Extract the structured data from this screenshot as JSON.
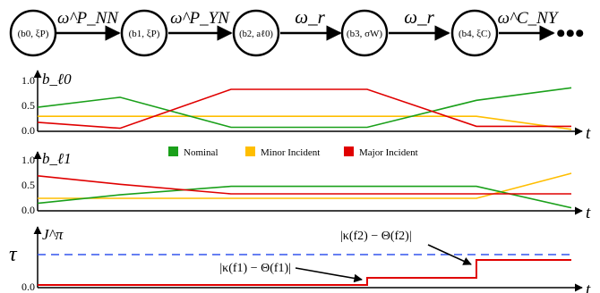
{
  "chain": {
    "states": [
      {
        "label": "(b0, ξP)"
      },
      {
        "label": "(b1, ξP)"
      },
      {
        "label": "(b2, aℓ0)"
      },
      {
        "label": "(b3, σW)"
      },
      {
        "label": "(b4, ξC)"
      }
    ],
    "transitions": [
      {
        "label": "ω^P_NN"
      },
      {
        "label": "ω^P_YN"
      },
      {
        "label": "ω_r"
      },
      {
        "label": "ω_r"
      },
      {
        "label": "ω^C_NY"
      }
    ],
    "continuation": "•••"
  },
  "legend": [
    {
      "label": "Nominal",
      "color": "#1aa01a"
    },
    {
      "label": "Minor Incident",
      "color": "#ffbe00"
    },
    {
      "label": "Major Incident",
      "color": "#e00000"
    }
  ],
  "belief_l0": {
    "ylabel": "b_ℓ0",
    "xlabel": "t",
    "yticks": [
      "0.0",
      "0.5",
      "1.0"
    ],
    "series": {
      "nominal": [
        0.48,
        0.68,
        0.08,
        0.08,
        0.62,
        0.87
      ],
      "minor": [
        0.3,
        0.3,
        0.3,
        0.3,
        0.3,
        0.04
      ],
      "major": [
        0.18,
        0.06,
        0.84,
        0.84,
        0.1,
        0.1
      ]
    }
  },
  "belief_l1": {
    "ylabel": "b_ℓ1",
    "xlabel": "t",
    "yticks": [
      "0.0",
      "0.5",
      "1.0"
    ],
    "series": {
      "nominal": [
        0.15,
        0.32,
        0.49,
        0.49,
        0.49,
        0.06
      ],
      "minor": [
        0.25,
        0.25,
        0.25,
        0.25,
        0.25,
        0.75
      ],
      "major": [
        0.7,
        0.53,
        0.34,
        0.34,
        0.34,
        0.34
      ]
    }
  },
  "cost": {
    "ylabel": "J^π",
    "xlabel": "t",
    "ytick0": "0.0",
    "threshold_label": "τ",
    "threshold_color": "#3355ee",
    "line_color": "#e00000",
    "annotations": [
      "|κ(f1) − Θ(f1)|",
      "|κ(f2) − Θ(f2)|"
    ]
  }
}
